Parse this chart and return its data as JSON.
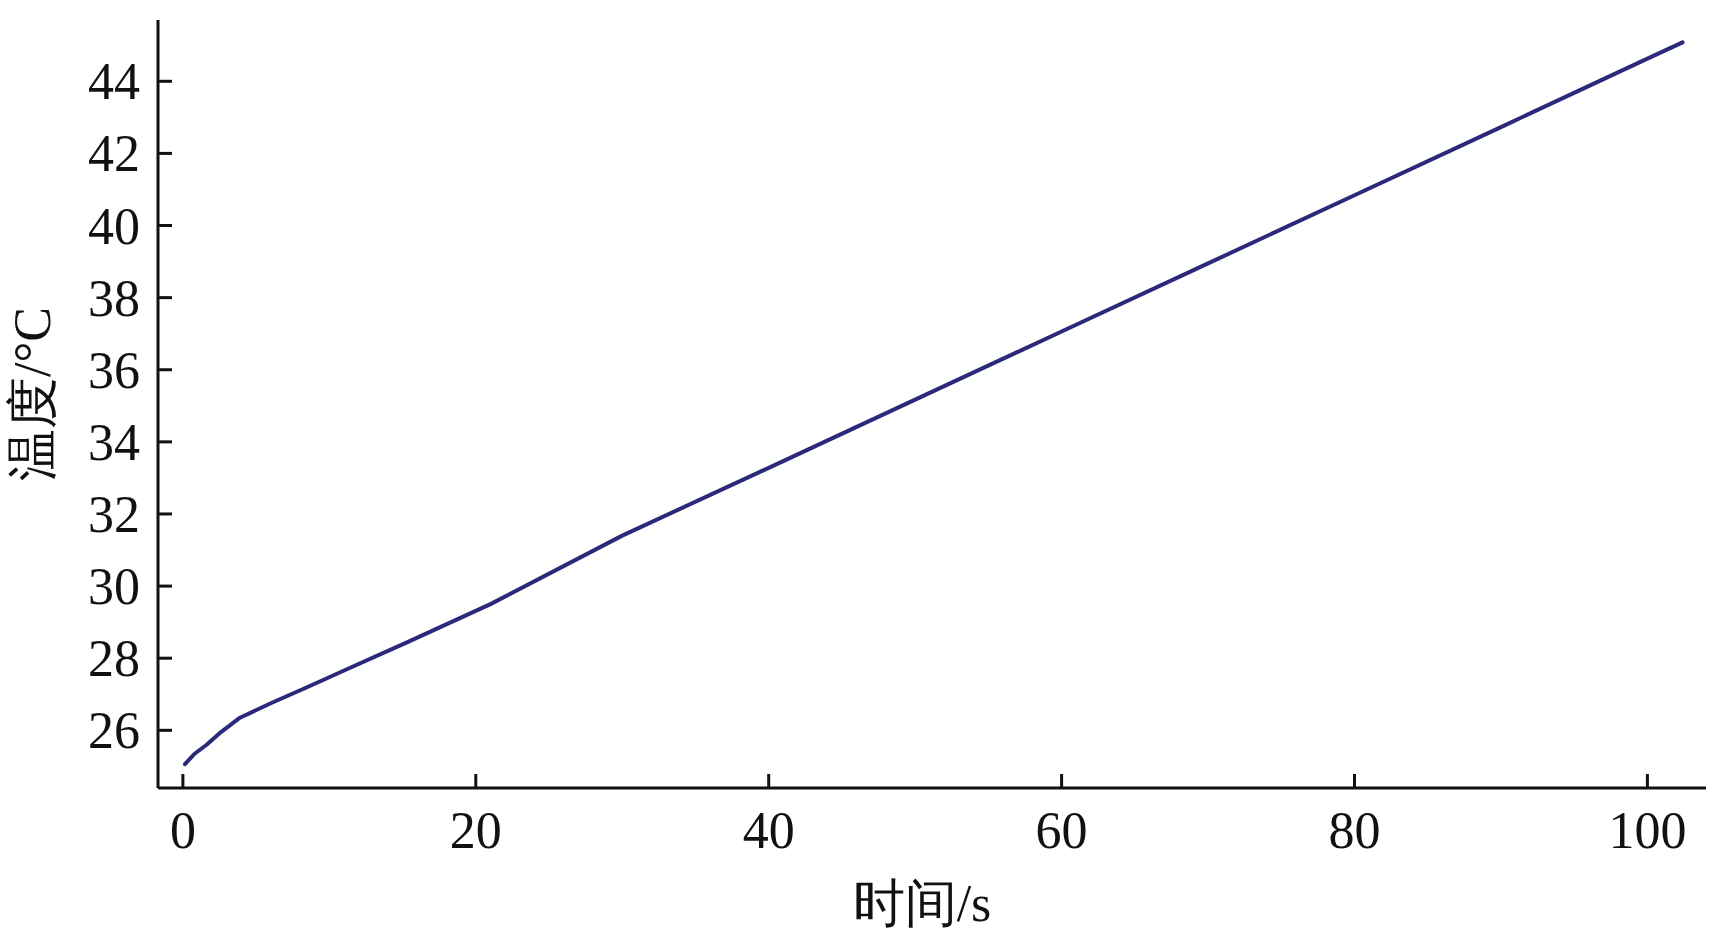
{
  "chart_data": {
    "type": "line",
    "xlabel": "时间/s",
    "ylabel": "温度/°C",
    "x": [
      0.14,
      0.8,
      1.62,
      2.6,
      3.9,
      6,
      8.4,
      11.5,
      15.3,
      21,
      30,
      40,
      50,
      60,
      70,
      80,
      90,
      100,
      102.4
    ],
    "series": [
      {
        "color": "#2b2a7a",
        "values": [
          25.06,
          25.35,
          25.6,
          25.95,
          26.35,
          26.75,
          27.18,
          27.75,
          28.44,
          29.5,
          31.4,
          33.28,
          35.17,
          37.06,
          38.95,
          40.84,
          42.73,
          44.63,
          45.08
        ]
      }
    ],
    "xlim": [
      -1.7,
      104
    ],
    "ylim": [
      24.4,
      45.7
    ],
    "xticks": [
      0,
      20,
      40,
      60,
      80,
      100
    ],
    "yticks": [
      26,
      28,
      30,
      32,
      34,
      36,
      38,
      40,
      42,
      44
    ],
    "grid": false,
    "marker": "none",
    "line_style": "solid"
  }
}
